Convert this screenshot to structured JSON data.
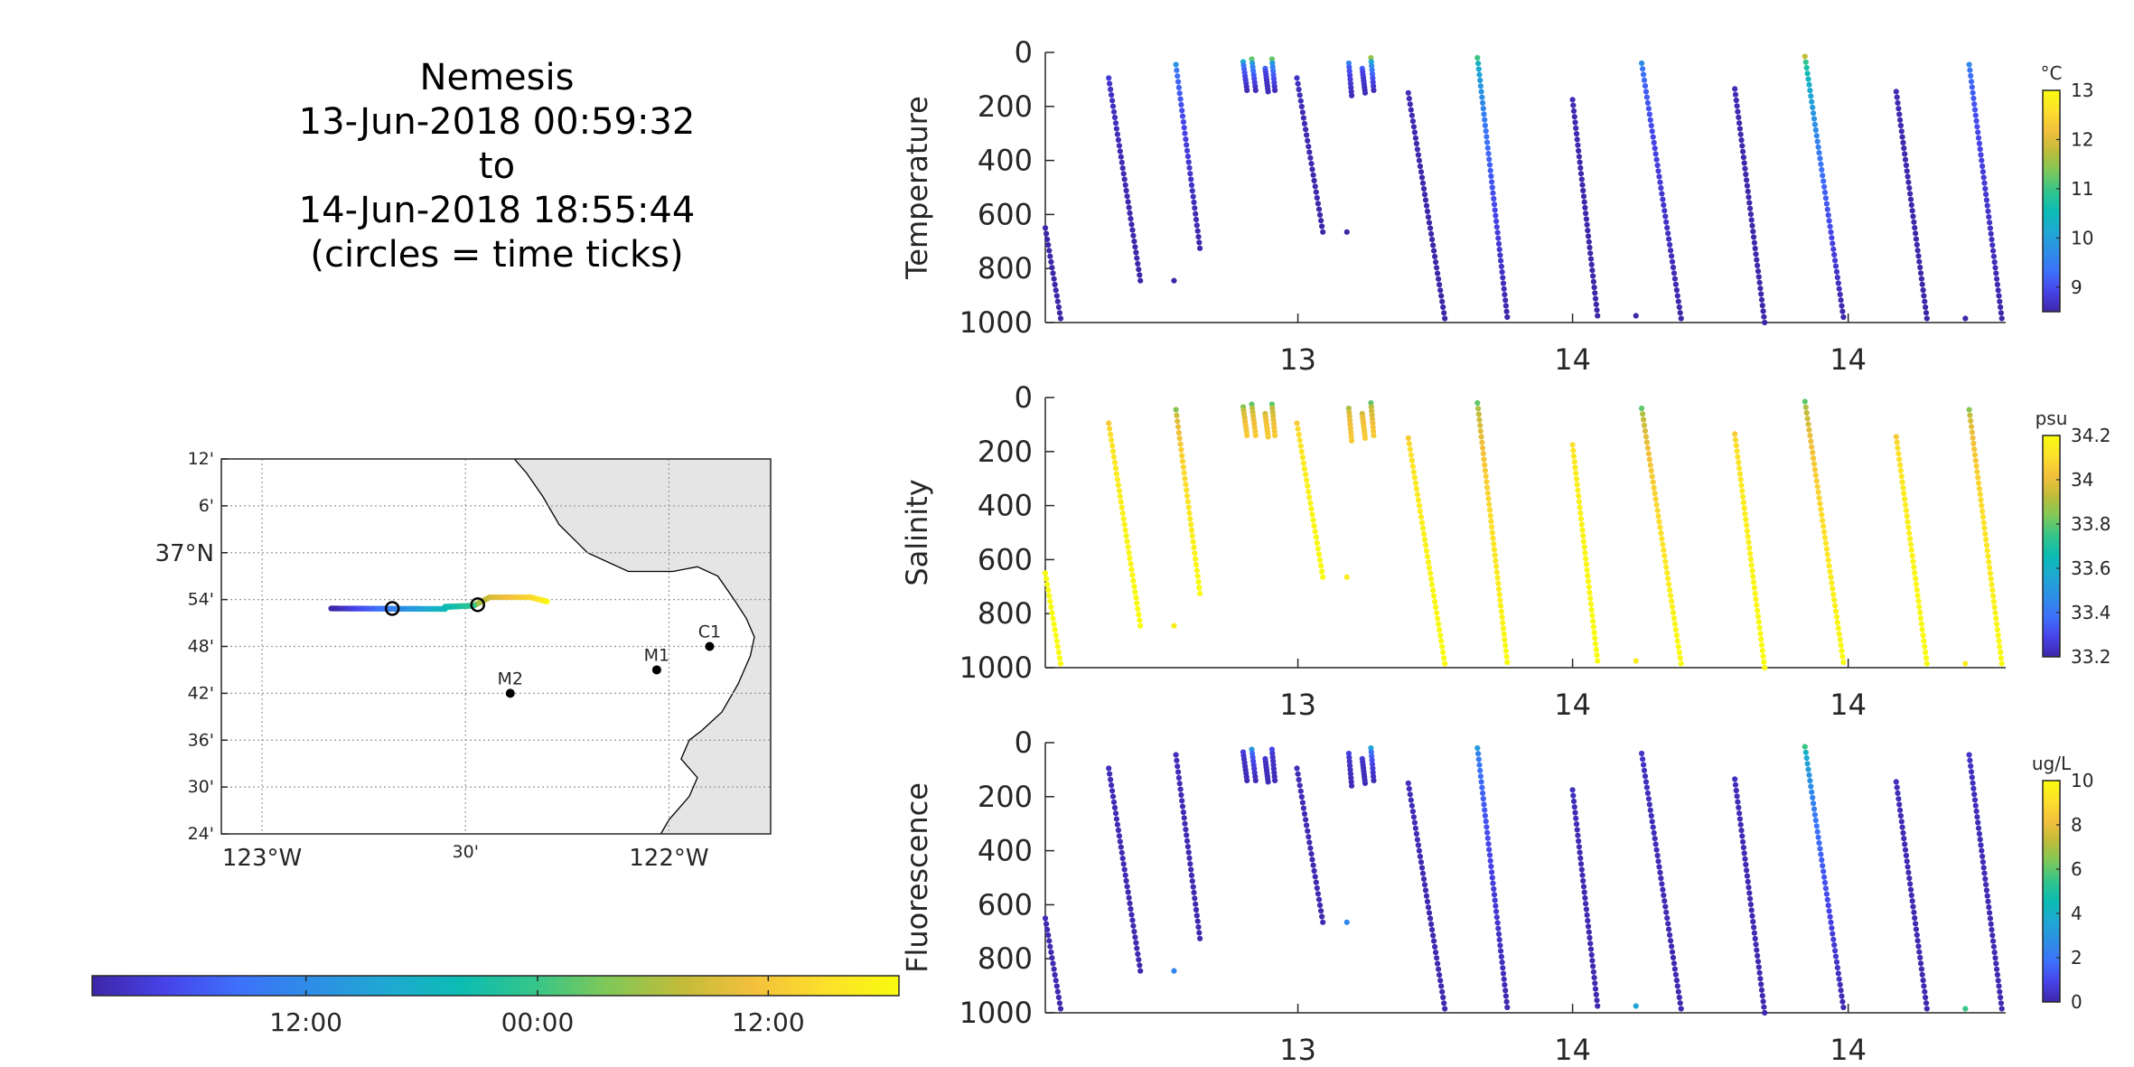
{
  "title": {
    "line1": "Nemesis",
    "line2": "13-Jun-2018 00:59:32",
    "line3": "to",
    "line4": "14-Jun-2018 18:55:44",
    "line5": "(circles = time ticks)"
  },
  "colormap": [
    "#3e26a8",
    "#4743e9",
    "#3e71fb",
    "#2d8ee5",
    "#1fa8d3",
    "#0bbcb3",
    "#33c58b",
    "#7ec858",
    "#c0bc3a",
    "#f3c03c",
    "#fce02b",
    "#f9fb0e"
  ],
  "colors": {
    "coast_land": "#e5e5e5",
    "grid": "#999999",
    "axis": "#262626"
  },
  "map": {
    "lat_ticks": [
      "12'",
      "6'",
      "37°N",
      "54'",
      "48'",
      "42'",
      "36'",
      "30'",
      "24'"
    ],
    "lat_values": [
      37.2,
      37.1,
      37.0,
      36.9,
      36.8,
      36.7,
      36.6,
      36.5,
      36.4
    ],
    "lon_ticks": [
      "123°W",
      "30'",
      "122°W"
    ],
    "lon_values": [
      -123.0,
      -122.5,
      -122.0
    ],
    "lat_range": [
      36.4,
      37.2
    ],
    "lon_range": [
      -123.1,
      -121.75
    ],
    "moorings": [
      {
        "name": "M2",
        "lon": -122.39,
        "lat": 36.7
      },
      {
        "name": "M1",
        "lon": -122.03,
        "lat": 36.75
      },
      {
        "name": "C1",
        "lon": -121.9,
        "lat": 36.8
      }
    ],
    "time_ticks": [
      {
        "lon": -122.68,
        "lat": 36.881
      },
      {
        "lon": -122.47,
        "lat": 36.889
      }
    ]
  },
  "time_colorbar": {
    "tick_labels": [
      "12:00",
      "00:00",
      "12:00"
    ],
    "tick_fraction": [
      0.265,
      0.552,
      0.838
    ]
  },
  "chart_data": [
    {
      "type": "scatter",
      "ylabel": "Temperature",
      "units": "°C",
      "ylim": [
        1000,
        0
      ],
      "yticks": [
        0,
        200,
        400,
        600,
        800,
        1000
      ],
      "x_tick_labels": [
        "13",
        "14",
        "14"
      ],
      "x_tick_fraction": [
        0.263,
        0.549,
        0.836
      ],
      "clim": [
        8.5,
        13.0
      ],
      "cbar_ticks": [
        9,
        10,
        11,
        12,
        13
      ],
      "profiles": [
        {
          "x0": 0.0,
          "x1": 0.016,
          "top": 650,
          "bottom": 985,
          "c_top": 8.5,
          "c_bottom": 8.5
        },
        {
          "x0": 0.066,
          "x1": 0.099,
          "top": 95,
          "bottom": 845,
          "c_top": 8.8,
          "c_bottom": 8.5
        },
        {
          "x0": 0.136,
          "x1": 0.161,
          "top": 45,
          "bottom": 725,
          "c_top": 9.8,
          "c_bottom": 8.5
        },
        {
          "x0": 0.206,
          "x1": 0.21,
          "top": 35,
          "bottom": 140,
          "c_top": 10.2,
          "c_bottom": 8.6
        },
        {
          "x0": 0.215,
          "x1": 0.219,
          "top": 25,
          "bottom": 140,
          "c_top": 11.2,
          "c_bottom": 8.6
        },
        {
          "x0": 0.229,
          "x1": 0.232,
          "top": 60,
          "bottom": 145,
          "c_top": 9.2,
          "c_bottom": 8.6
        },
        {
          "x0": 0.236,
          "x1": 0.239,
          "top": 25,
          "bottom": 140,
          "c_top": 11.2,
          "c_bottom": 8.6
        },
        {
          "x0": 0.262,
          "x1": 0.289,
          "top": 95,
          "bottom": 665,
          "c_top": 8.7,
          "c_bottom": 8.5
        },
        {
          "x0": 0.316,
          "x1": 0.319,
          "top": 40,
          "bottom": 160,
          "c_top": 9.6,
          "c_bottom": 8.6
        },
        {
          "x0": 0.33,
          "x1": 0.333,
          "top": 60,
          "bottom": 150,
          "c_top": 9.2,
          "c_bottom": 8.6
        },
        {
          "x0": 0.339,
          "x1": 0.342,
          "top": 20,
          "bottom": 140,
          "c_top": 11.5,
          "c_bottom": 8.6
        },
        {
          "x0": 0.378,
          "x1": 0.416,
          "top": 150,
          "bottom": 985,
          "c_top": 8.6,
          "c_bottom": 8.5
        },
        {
          "x0": 0.45,
          "x1": 0.481,
          "top": 20,
          "bottom": 980,
          "c_top": 11.0,
          "c_bottom": 8.5
        },
        {
          "x0": 0.549,
          "x1": 0.575,
          "top": 175,
          "bottom": 975,
          "c_top": 8.6,
          "c_bottom": 8.5
        },
        {
          "x0": 0.621,
          "x1": 0.662,
          "top": 40,
          "bottom": 985,
          "c_top": 9.7,
          "c_bottom": 8.5
        },
        {
          "x0": 0.718,
          "x1": 0.749,
          "top": 135,
          "bottom": 1000,
          "c_top": 8.6,
          "c_bottom": 8.5
        },
        {
          "x0": 0.791,
          "x1": 0.831,
          "top": 15,
          "bottom": 980,
          "c_top": 11.8,
          "c_bottom": 8.5
        },
        {
          "x0": 0.886,
          "x1": 0.918,
          "top": 145,
          "bottom": 985,
          "c_top": 8.6,
          "c_bottom": 8.5
        },
        {
          "x0": 0.962,
          "x1": 0.996,
          "top": 45,
          "bottom": 985,
          "c_top": 9.7,
          "c_bottom": 8.5
        }
      ],
      "points": [
        {
          "x": 0.134,
          "y": 845,
          "c": 8.5
        },
        {
          "x": 0.314,
          "y": 665,
          "c": 8.5
        },
        {
          "x": 0.615,
          "y": 975,
          "c": 8.5
        },
        {
          "x": 0.958,
          "y": 985,
          "c": 8.5
        }
      ]
    },
    {
      "type": "scatter",
      "ylabel": "Salinity",
      "units": "psu",
      "ylim": [
        1000,
        0
      ],
      "yticks": [
        0,
        200,
        400,
        600,
        800,
        1000
      ],
      "x_tick_labels": [
        "13",
        "14",
        "14"
      ],
      "x_tick_fraction": [
        0.263,
        0.549,
        0.836
      ],
      "clim": [
        33.2,
        34.2
      ],
      "cbar_ticks": [
        33.2,
        33.4,
        33.6,
        33.8,
        34,
        34.2
      ],
      "profiles": [
        {
          "x0": 0.0,
          "x1": 0.016,
          "top": 650,
          "bottom": 985,
          "c_top": 34.2,
          "c_bottom": 34.2
        },
        {
          "x0": 0.066,
          "x1": 0.099,
          "top": 95,
          "bottom": 845,
          "c_top": 34.05,
          "c_bottom": 34.2
        },
        {
          "x0": 0.136,
          "x1": 0.161,
          "top": 45,
          "bottom": 725,
          "c_top": 33.85,
          "c_bottom": 34.2
        },
        {
          "x0": 0.206,
          "x1": 0.21,
          "top": 35,
          "bottom": 140,
          "c_top": 33.85,
          "c_bottom": 34.05
        },
        {
          "x0": 0.215,
          "x1": 0.219,
          "top": 25,
          "bottom": 140,
          "c_top": 33.8,
          "c_bottom": 34.05
        },
        {
          "x0": 0.229,
          "x1": 0.232,
          "top": 60,
          "bottom": 145,
          "c_top": 33.95,
          "c_bottom": 34.05
        },
        {
          "x0": 0.236,
          "x1": 0.239,
          "top": 25,
          "bottom": 140,
          "c_top": 33.8,
          "c_bottom": 34.05
        },
        {
          "x0": 0.262,
          "x1": 0.289,
          "top": 95,
          "bottom": 665,
          "c_top": 34.05,
          "c_bottom": 34.2
        },
        {
          "x0": 0.316,
          "x1": 0.319,
          "top": 40,
          "bottom": 160,
          "c_top": 33.9,
          "c_bottom": 34.05
        },
        {
          "x0": 0.33,
          "x1": 0.333,
          "top": 60,
          "bottom": 150,
          "c_top": 33.95,
          "c_bottom": 34.05
        },
        {
          "x0": 0.339,
          "x1": 0.342,
          "top": 20,
          "bottom": 140,
          "c_top": 33.8,
          "c_bottom": 34.05
        },
        {
          "x0": 0.378,
          "x1": 0.416,
          "top": 150,
          "bottom": 985,
          "c_top": 34.05,
          "c_bottom": 34.2
        },
        {
          "x0": 0.45,
          "x1": 0.481,
          "top": 20,
          "bottom": 980,
          "c_top": 33.8,
          "c_bottom": 34.2
        },
        {
          "x0": 0.549,
          "x1": 0.575,
          "top": 175,
          "bottom": 975,
          "c_top": 34.1,
          "c_bottom": 34.2
        },
        {
          "x0": 0.621,
          "x1": 0.662,
          "top": 40,
          "bottom": 985,
          "c_top": 33.8,
          "c_bottom": 34.2
        },
        {
          "x0": 0.718,
          "x1": 0.749,
          "top": 135,
          "bottom": 1000,
          "c_top": 34.05,
          "c_bottom": 34.2
        },
        {
          "x0": 0.791,
          "x1": 0.831,
          "top": 15,
          "bottom": 980,
          "c_top": 33.8,
          "c_bottom": 34.2
        },
        {
          "x0": 0.886,
          "x1": 0.918,
          "top": 145,
          "bottom": 985,
          "c_top": 34.05,
          "c_bottom": 34.2
        },
        {
          "x0": 0.962,
          "x1": 0.996,
          "top": 45,
          "bottom": 985,
          "c_top": 33.85,
          "c_bottom": 34.2
        }
      ],
      "points": [
        {
          "x": 0.134,
          "y": 845,
          "c": 34.15
        },
        {
          "x": 0.314,
          "y": 665,
          "c": 34.15
        },
        {
          "x": 0.615,
          "y": 975,
          "c": 34.15
        },
        {
          "x": 0.958,
          "y": 985,
          "c": 34.15
        }
      ]
    },
    {
      "type": "scatter",
      "ylabel": "Fluorescence",
      "units": "ug/L",
      "ylim": [
        1000,
        0
      ],
      "yticks": [
        0,
        200,
        400,
        600,
        800,
        1000
      ],
      "x_tick_labels": [
        "13",
        "14",
        "14"
      ],
      "x_tick_fraction": [
        0.263,
        0.549,
        0.836
      ],
      "clim": [
        0,
        10
      ],
      "cbar_ticks": [
        0,
        2,
        4,
        6,
        8,
        10
      ],
      "profiles": [
        {
          "x0": 0.0,
          "x1": 0.016,
          "top": 650,
          "bottom": 985,
          "c_top": 0.2,
          "c_bottom": 0.1
        },
        {
          "x0": 0.066,
          "x1": 0.099,
          "top": 95,
          "bottom": 845,
          "c_top": 0.3,
          "c_bottom": 0.1
        },
        {
          "x0": 0.136,
          "x1": 0.161,
          "top": 45,
          "bottom": 725,
          "c_top": 0.3,
          "c_bottom": 0.1
        },
        {
          "x0": 0.206,
          "x1": 0.21,
          "top": 35,
          "bottom": 140,
          "c_top": 0.8,
          "c_bottom": 0.2
        },
        {
          "x0": 0.215,
          "x1": 0.219,
          "top": 25,
          "bottom": 140,
          "c_top": 3.0,
          "c_bottom": 0.2
        },
        {
          "x0": 0.229,
          "x1": 0.232,
          "top": 60,
          "bottom": 145,
          "c_top": 0.6,
          "c_bottom": 0.2
        },
        {
          "x0": 0.236,
          "x1": 0.239,
          "top": 25,
          "bottom": 140,
          "c_top": 1.0,
          "c_bottom": 0.2
        },
        {
          "x0": 0.262,
          "x1": 0.289,
          "top": 95,
          "bottom": 665,
          "c_top": 0.3,
          "c_bottom": 0.1
        },
        {
          "x0": 0.316,
          "x1": 0.319,
          "top": 40,
          "bottom": 160,
          "c_top": 0.8,
          "c_bottom": 0.2
        },
        {
          "x0": 0.33,
          "x1": 0.333,
          "top": 60,
          "bottom": 150,
          "c_top": 0.6,
          "c_bottom": 0.2
        },
        {
          "x0": 0.339,
          "x1": 0.342,
          "top": 20,
          "bottom": 140,
          "c_top": 3.5,
          "c_bottom": 0.2
        },
        {
          "x0": 0.378,
          "x1": 0.416,
          "top": 150,
          "bottom": 985,
          "c_top": 0.3,
          "c_bottom": 0.1
        },
        {
          "x0": 0.45,
          "x1": 0.481,
          "top": 20,
          "bottom": 980,
          "c_top": 3.2,
          "c_bottom": 0.1
        },
        {
          "x0": 0.549,
          "x1": 0.575,
          "top": 175,
          "bottom": 975,
          "c_top": 0.3,
          "c_bottom": 0.1
        },
        {
          "x0": 0.621,
          "x1": 0.662,
          "top": 40,
          "bottom": 985,
          "c_top": 0.5,
          "c_bottom": 0.1
        },
        {
          "x0": 0.718,
          "x1": 0.749,
          "top": 135,
          "bottom": 1000,
          "c_top": 0.3,
          "c_bottom": 0.1
        },
        {
          "x0": 0.791,
          "x1": 0.831,
          "top": 15,
          "bottom": 980,
          "c_top": 5.5,
          "c_bottom": 0.1
        },
        {
          "x0": 0.886,
          "x1": 0.918,
          "top": 145,
          "bottom": 985,
          "c_top": 0.3,
          "c_bottom": 0.1
        },
        {
          "x0": 0.962,
          "x1": 0.996,
          "top": 45,
          "bottom": 985,
          "c_top": 0.5,
          "c_bottom": 0.1
        }
      ],
      "points": [
        {
          "x": 0.134,
          "y": 845,
          "c": 2.5
        },
        {
          "x": 0.314,
          "y": 665,
          "c": 2.5
        },
        {
          "x": 0.615,
          "y": 975,
          "c": 3.5
        },
        {
          "x": 0.958,
          "y": 985,
          "c": 5.5
        }
      ]
    }
  ]
}
